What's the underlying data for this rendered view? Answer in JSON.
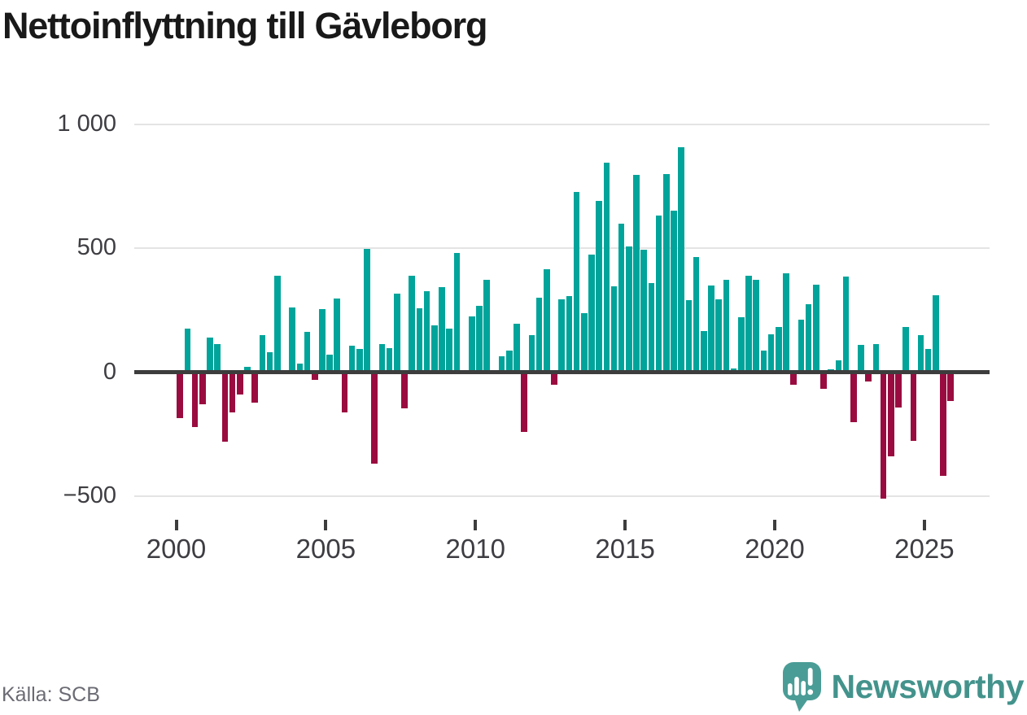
{
  "title": "Nettoinflyttning till Gävleborg",
  "source": "Källa: SCB",
  "logo": {
    "text": "Newsworthy",
    "icon_color": "#4a9d96",
    "text_color": "#43938c"
  },
  "colors": {
    "positive_bar": "#00a49a",
    "negative_bar": "#9a0c3f",
    "zero_axis": "#3d3d3d",
    "gridline": "#e4e4e4",
    "title_text": "#191919",
    "axis_label_text": "#3d3d42",
    "source_text": "#6b6b74"
  },
  "chart_data": {
    "type": "bar",
    "title": "Nettoinflyttning till Gävleborg",
    "frequency": "quarterly",
    "start_period": "2000 Q1",
    "end_period": "2025 Q4",
    "xlabel": "",
    "ylabel": "",
    "ylim": [
      -550,
      1050
    ],
    "grid": "horizontal",
    "legend": "none",
    "values": [
      -184,
      174,
      -220,
      -128,
      138,
      112,
      -280,
      -161,
      -89,
      20,
      -122,
      148,
      79,
      388,
      0,
      260,
      36,
      161,
      -30,
      253,
      72,
      298,
      -163,
      105,
      92,
      497,
      -368,
      114,
      97,
      315,
      -147,
      390,
      256,
      325,
      190,
      344,
      176,
      480,
      0,
      225,
      268,
      372,
      0,
      65,
      86,
      196,
      -242,
      150,
      300,
      415,
      -52,
      295,
      308,
      725,
      238,
      473,
      690,
      845,
      346,
      598,
      507,
      795,
      493,
      360,
      630,
      800,
      650,
      905,
      290,
      463,
      165,
      348,
      292,
      371,
      14,
      221,
      390,
      372,
      88,
      153,
      182,
      400,
      -50,
      213,
      274,
      354,
      -66,
      13,
      47,
      384,
      -200,
      109,
      -37,
      112,
      -509,
      -340,
      -144,
      182,
      -276,
      148,
      94,
      309,
      -419,
      -117
    ],
    "yticks": [
      {
        "value": 1000,
        "label": "1 000"
      },
      {
        "value": 500,
        "label": "500"
      },
      {
        "value": 0,
        "label": "0"
      },
      {
        "value": -500,
        "label": "−500"
      }
    ],
    "xticks": [
      {
        "year": 2000,
        "label": "2000"
      },
      {
        "year": 2005,
        "label": "2005"
      },
      {
        "year": 2010,
        "label": "2010"
      },
      {
        "year": 2015,
        "label": "2015"
      },
      {
        "year": 2020,
        "label": "2020"
      },
      {
        "year": 2025,
        "label": "2025"
      }
    ]
  }
}
